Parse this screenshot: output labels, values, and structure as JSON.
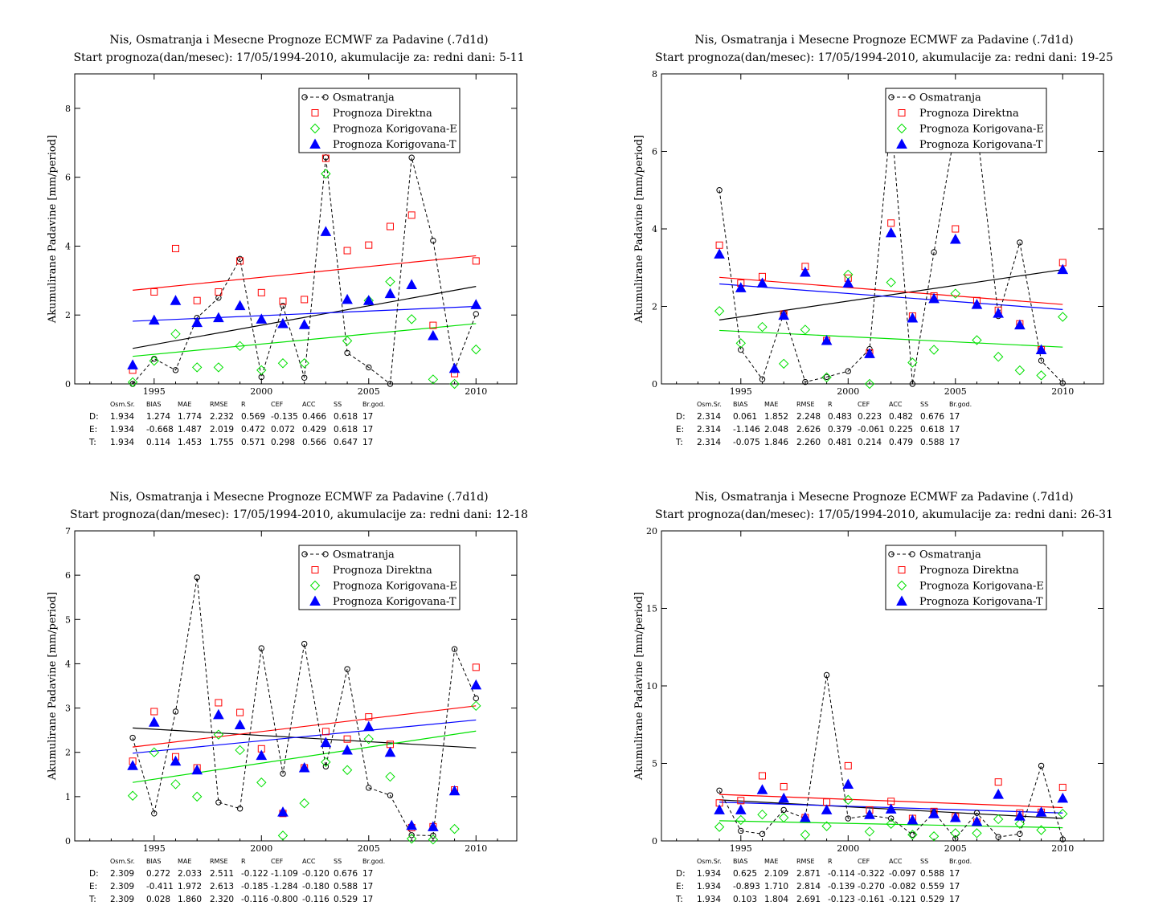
{
  "chart_data": [
    {
      "type": "scatter",
      "title": "Nis, Osmatranja i Mesecne Prognoze ECMWF za Padavine (.7d1d)",
      "subtitle": "Start prognoza(dan/mesec): 17/05/1994-2010, akumulacije za: redni dani: 5-11",
      "ylabel": "Akumulirane Padavine [mm/period]",
      "xlim": [
        1991.3,
        2011.9
      ],
      "ylim": [
        0,
        9
      ],
      "xticks": [
        1995,
        2000,
        2005,
        2010
      ],
      "yticks": [
        0,
        2,
        4,
        6,
        8
      ],
      "x": [
        1994,
        1995,
        1996,
        1997,
        1998,
        1999,
        2000,
        2001,
        2002,
        2003,
        2004,
        2005,
        2006,
        2007,
        2008,
        2009,
        2010
      ],
      "series": [
        {
          "name": "Osmatranja",
          "values": [
            0.0,
            0.73,
            0.4,
            1.92,
            2.5,
            3.63,
            0.2,
            2.27,
            0.18,
            6.58,
            0.9,
            0.48,
            0.0,
            6.57,
            4.16,
            0.4,
            2.03
          ],
          "color": "#000000",
          "marker": "circle"
        },
        {
          "name": "Prognoza Direktna",
          "values": [
            0.4,
            2.67,
            3.93,
            2.42,
            2.67,
            3.57,
            2.65,
            2.4,
            2.45,
            6.55,
            3.87,
            4.03,
            4.57,
            4.9,
            1.7,
            0.3,
            3.57
          ],
          "color": "#ff0000",
          "marker": "square"
        },
        {
          "name": "Prognoza Korigovana-E",
          "values": [
            0.05,
            0.67,
            1.45,
            0.48,
            0.48,
            1.1,
            0.4,
            0.6,
            0.6,
            6.1,
            1.25,
            2.42,
            2.97,
            1.88,
            0.13,
            0.0,
            1.0
          ],
          "color": "#00e000",
          "marker": "diamond"
        },
        {
          "name": "Prognoza Korigovana-T",
          "values": [
            0.55,
            1.85,
            2.42,
            1.78,
            1.92,
            2.27,
            1.88,
            1.75,
            1.72,
            4.42,
            2.45,
            2.42,
            2.62,
            2.88,
            1.4,
            0.45,
            2.3
          ],
          "color": "#0000ff",
          "marker": "triangle"
        }
      ],
      "trends": [
        {
          "color": "#000000",
          "start": 1.03,
          "end": 2.83
        },
        {
          "color": "#ff0000",
          "start": 2.72,
          "end": 3.72
        },
        {
          "color": "#00e000",
          "start": 0.8,
          "end": 1.75
        },
        {
          "color": "#0000ff",
          "start": 1.82,
          "end": 2.25
        }
      ],
      "stats_header": [
        "Osm.Sr.",
        "BIAS",
        "MAE",
        "RMSE",
        "R",
        "CEF",
        "ACC",
        "SS",
        "Br.god."
      ],
      "stats": [
        {
          "label": "D:",
          "color": "#ff0000",
          "values": [
            "1.934",
            "1.274",
            "1.774",
            "2.232",
            "0.569",
            "-0.135",
            "0.466",
            "0.618",
            "17"
          ]
        },
        {
          "label": "E:",
          "color": "#00c000",
          "values": [
            "1.934",
            "-0.668",
            "1.487",
            "2.019",
            "0.472",
            "0.072",
            "0.429",
            "0.618",
            "17"
          ]
        },
        {
          "label": "T:",
          "color": "#0000ff",
          "values": [
            "1.934",
            "0.114",
            "1.453",
            "1.755",
            "0.571",
            "0.298",
            "0.566",
            "0.647",
            "17"
          ]
        }
      ]
    },
    {
      "type": "scatter",
      "title": "Nis, Osmatranja i Mesecne Prognoze ECMWF za Padavine (.7d1d)",
      "subtitle": "Start prognoza(dan/mesec): 17/05/1994-2010, akumulacije za: redni dani: 19-25",
      "ylabel": "Akumulirane Padavine [mm/period]",
      "xlim": [
        1991.3,
        2011.9
      ],
      "ylim": [
        0,
        8
      ],
      "xticks": [
        1995,
        2000,
        2005,
        2010
      ],
      "yticks": [
        0,
        2,
        4,
        6,
        8
      ],
      "x": [
        1994,
        1995,
        1996,
        1997,
        1998,
        1999,
        2000,
        2001,
        2002,
        2003,
        2004,
        2005,
        2006,
        2007,
        2008,
        2009,
        2010
      ],
      "series": [
        {
          "name": "Osmatranja",
          "values": [
            5.0,
            0.88,
            0.12,
            1.82,
            0.05,
            0.18,
            0.33,
            0.9,
            6.9,
            0.0,
            3.4,
            6.6,
            6.6,
            1.75,
            3.65,
            0.6,
            0.02
          ],
          "color": "#000000",
          "marker": "circle"
        },
        {
          "name": "Prognoza Direktna",
          "values": [
            3.58,
            2.6,
            2.77,
            1.8,
            3.03,
            1.12,
            2.73,
            0.8,
            4.15,
            1.75,
            2.27,
            4.0,
            2.15,
            1.9,
            1.55,
            0.88,
            3.13
          ],
          "color": "#ff0000",
          "marker": "square"
        },
        {
          "name": "Prognoza Korigovana-E",
          "values": [
            1.88,
            1.05,
            1.47,
            0.52,
            1.4,
            0.17,
            2.82,
            0.0,
            2.62,
            0.55,
            0.88,
            2.33,
            1.13,
            0.7,
            0.35,
            0.22,
            1.73
          ],
          "color": "#00e000",
          "marker": "diamond"
        },
        {
          "name": "Prognoza Korigovana-T",
          "values": [
            3.35,
            2.48,
            2.6,
            1.77,
            2.88,
            1.12,
            2.6,
            0.78,
            3.9,
            1.7,
            2.2,
            3.73,
            2.05,
            1.82,
            1.52,
            0.88,
            2.95
          ],
          "color": "#0000ff",
          "marker": "triangle"
        }
      ],
      "trends": [
        {
          "color": "#000000",
          "start": 1.65,
          "end": 2.95
        },
        {
          "color": "#ff0000",
          "start": 2.75,
          "end": 2.05
        },
        {
          "color": "#00e000",
          "start": 1.38,
          "end": 0.95
        },
        {
          "color": "#0000ff",
          "start": 2.58,
          "end": 1.92
        }
      ],
      "stats_header": [
        "Osm.Sr.",
        "BIAS",
        "MAE",
        "RMSE",
        "R",
        "CEF",
        "ACC",
        "SS",
        "Br.god."
      ],
      "stats": [
        {
          "label": "D:",
          "color": "#ff0000",
          "values": [
            "2.314",
            "0.061",
            "1.852",
            "2.248",
            "0.483",
            "0.223",
            "0.482",
            "0.676",
            "17"
          ]
        },
        {
          "label": "E:",
          "color": "#00c000",
          "values": [
            "2.314",
            "-1.146",
            "2.048",
            "2.626",
            "0.379",
            "-0.061",
            "0.225",
            "0.618",
            "17"
          ]
        },
        {
          "label": "T:",
          "color": "#0000ff",
          "values": [
            "2.314",
            "-0.075",
            "1.846",
            "2.260",
            "0.481",
            "0.214",
            "0.479",
            "0.588",
            "17"
          ]
        }
      ]
    },
    {
      "type": "scatter",
      "title": "Nis, Osmatranja i Mesecne Prognoze ECMWF za Padavine (.7d1d)",
      "subtitle": "Start prognoza(dan/mesec): 17/05/1994-2010, akumulacije za: redni dani: 12-18",
      "ylabel": "Akumulirane Padavine [mm/period]",
      "xlim": [
        1991.3,
        2011.9
      ],
      "ylim": [
        0,
        7
      ],
      "xticks": [
        1995,
        2000,
        2005,
        2010
      ],
      "yticks": [
        0,
        1,
        2,
        3,
        4,
        5,
        6,
        7
      ],
      "x": [
        1994,
        1995,
        1996,
        1997,
        1998,
        1999,
        2000,
        2001,
        2002,
        2003,
        2004,
        2005,
        2006,
        2007,
        2008,
        2009,
        2010
      ],
      "series": [
        {
          "name": "Osmatranja",
          "values": [
            2.33,
            0.62,
            2.92,
            5.95,
            0.87,
            0.73,
            4.35,
            1.52,
            4.45,
            1.68,
            3.88,
            1.2,
            1.03,
            0.13,
            0.12,
            4.33,
            3.22
          ],
          "color": "#000000",
          "marker": "circle"
        },
        {
          "name": "Prognoza Direktna",
          "values": [
            1.8,
            2.92,
            1.9,
            1.65,
            3.12,
            2.9,
            2.08,
            0.62,
            1.65,
            2.47,
            2.3,
            2.8,
            2.18,
            0.3,
            0.32,
            1.15,
            3.92
          ],
          "color": "#ff0000",
          "marker": "square"
        },
        {
          "name": "Prognoza Korigovana-E",
          "values": [
            1.02,
            2.0,
            1.28,
            1.0,
            2.4,
            2.05,
            1.32,
            0.12,
            0.85,
            1.78,
            1.6,
            2.3,
            1.45,
            0.05,
            0.03,
            0.27,
            3.05
          ],
          "color": "#00e000",
          "marker": "diamond"
        },
        {
          "name": "Prognoza Korigovana-T",
          "values": [
            1.7,
            2.68,
            1.8,
            1.6,
            2.85,
            2.62,
            1.93,
            0.65,
            1.65,
            2.22,
            2.05,
            2.58,
            2.0,
            0.35,
            0.32,
            1.13,
            3.52
          ],
          "color": "#0000ff",
          "marker": "triangle"
        }
      ],
      "trends": [
        {
          "color": "#000000",
          "start": 2.55,
          "end": 2.1
        },
        {
          "color": "#ff0000",
          "start": 2.12,
          "end": 3.05
        },
        {
          "color": "#00e000",
          "start": 1.32,
          "end": 2.48
        },
        {
          "color": "#0000ff",
          "start": 1.98,
          "end": 2.73
        }
      ],
      "stats_header": [
        "Osm.Sr.",
        "BIAS",
        "MAE",
        "RMSE",
        "R",
        "CEF",
        "ACC",
        "SS",
        "Br.god."
      ],
      "stats": [
        {
          "label": "D:",
          "color": "#ff0000",
          "values": [
            "2.309",
            "0.272",
            "2.033",
            "2.511",
            "-0.122",
            "-1.109",
            "-0.120",
            "0.676",
            "17"
          ]
        },
        {
          "label": "E:",
          "color": "#00c000",
          "values": [
            "2.309",
            "-0.411",
            "1.972",
            "2.613",
            "-0.185",
            "-1.284",
            "-0.180",
            "0.588",
            "17"
          ]
        },
        {
          "label": "T:",
          "color": "#0000ff",
          "values": [
            "2.309",
            "0.028",
            "1.860",
            "2.320",
            "-0.116",
            "-0.800",
            "-0.116",
            "0.529",
            "17"
          ]
        }
      ]
    },
    {
      "type": "scatter",
      "title": "Nis, Osmatranja i Mesecne Prognoze ECMWF za Padavine (.7d1d)",
      "subtitle": "Start prognoza(dan/mesec): 17/05/1994-2010, akumulacije za: redni dani: 26-31",
      "ylabel": "Akumulirane Padavine [mm/period]",
      "xlim": [
        1991.3,
        2011.9
      ],
      "ylim": [
        0,
        20
      ],
      "xticks": [
        1995,
        2000,
        2005,
        2010
      ],
      "yticks": [
        0,
        5,
        10,
        15,
        20
      ],
      "x": [
        1994,
        1995,
        1996,
        1997,
        1998,
        1999,
        2000,
        2001,
        2002,
        2003,
        2004,
        2005,
        2006,
        2007,
        2008,
        2009,
        2010
      ],
      "series": [
        {
          "name": "Osmatranja",
          "values": [
            3.25,
            0.65,
            0.45,
            2.0,
            1.45,
            10.7,
            1.45,
            1.65,
            1.45,
            0.4,
            1.85,
            0.15,
            1.8,
            0.25,
            0.45,
            4.85,
            0.1
          ],
          "color": "#000000",
          "marker": "circle"
        },
        {
          "name": "Prognoza Direktna",
          "values": [
            2.45,
            2.6,
            4.2,
            3.5,
            1.5,
            2.5,
            4.85,
            2.0,
            2.55,
            1.45,
            1.9,
            1.55,
            1.2,
            3.8,
            1.8,
            1.85,
            3.45
          ],
          "color": "#ff0000",
          "marker": "square"
        },
        {
          "name": "Prognoza Korigovana-E",
          "values": [
            0.9,
            1.35,
            1.7,
            1.5,
            0.4,
            0.95,
            2.65,
            0.6,
            1.1,
            0.4,
            0.3,
            0.5,
            0.5,
            1.4,
            1.1,
            0.7,
            1.75
          ],
          "color": "#00e000",
          "marker": "diamond"
        },
        {
          "name": "Prognoza Korigovana-T",
          "values": [
            2.0,
            2.0,
            3.3,
            2.75,
            1.5,
            2.0,
            3.65,
            1.7,
            2.05,
            1.35,
            1.75,
            1.5,
            1.25,
            3.0,
            1.6,
            1.85,
            2.75
          ],
          "color": "#0000ff",
          "marker": "triangle"
        }
      ],
      "trends": [
        {
          "color": "#000000",
          "start": 2.65,
          "end": 1.45
        },
        {
          "color": "#ff0000",
          "start": 3.0,
          "end": 2.15
        },
        {
          "color": "#00e000",
          "start": 1.3,
          "end": 0.85
        },
        {
          "color": "#0000ff",
          "start": 2.5,
          "end": 1.8
        }
      ],
      "stats_header": [
        "Osm.Sr.",
        "BIAS",
        "MAE",
        "RMSE",
        "R",
        "CEF",
        "ACC",
        "SS",
        "Br.god."
      ],
      "stats": [
        {
          "label": "D:",
          "color": "#ff0000",
          "values": [
            "1.934",
            "0.625",
            "2.109",
            "2.871",
            "-0.114",
            "-0.322",
            "-0.097",
            "0.588",
            "17"
          ]
        },
        {
          "label": "E:",
          "color": "#00c000",
          "values": [
            "1.934",
            "-0.893",
            "1.710",
            "2.814",
            "-0.139",
            "-0.270",
            "-0.082",
            "0.559",
            "17"
          ]
        },
        {
          "label": "T:",
          "color": "#0000ff",
          "values": [
            "1.934",
            "0.103",
            "1.804",
            "2.691",
            "-0.123",
            "-0.161",
            "-0.121",
            "0.529",
            "17"
          ]
        }
      ]
    }
  ]
}
